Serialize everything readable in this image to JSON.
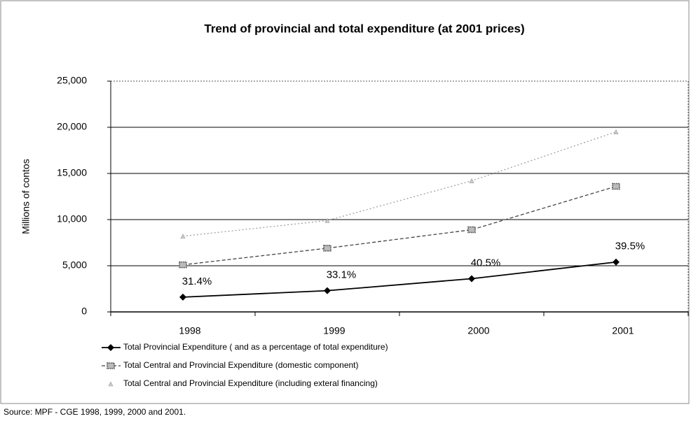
{
  "chart_data": {
    "type": "line",
    "title": "Trend of provincial and total expenditure (at 2001 prices)",
    "y_label": "Millions of contos",
    "categories": [
      "1998",
      "1999",
      "2000",
      "2001"
    ],
    "series": [
      {
        "name": "Total Provincial Expenditure ( and as a percentage of total expenditure)",
        "color": "#000000",
        "values": [
          1600,
          2300,
          3600,
          5400
        ],
        "annotations": [
          "31.4%",
          "33.1%",
          "40.5%",
          "39.5%"
        ]
      },
      {
        "name": "Total Central and Provincial Expenditure (domestic component)",
        "color": "#444444",
        "values": [
          5100,
          6900,
          8900,
          13600
        ]
      },
      {
        "name": "Total Central and Provincial Expenditure (including exteral financing)",
        "color": "#999999",
        "values": [
          8200,
          9900,
          14200,
          19500
        ]
      }
    ],
    "ylim": [
      0,
      25000
    ],
    "yticks": [
      0,
      {
        "value": 5000,
        "label": "5,000"
      },
      {
        "value": 10000,
        "label": "10,000"
      },
      {
        "value": 15000,
        "label": "15,000"
      },
      {
        "value": 20000,
        "label": "20,000"
      },
      {
        "value": 25000,
        "label": "25,000"
      }
    ],
    "grid": true,
    "source": "Source:  MPF -  CGE 1998, 1999, 2000 and 2001."
  }
}
